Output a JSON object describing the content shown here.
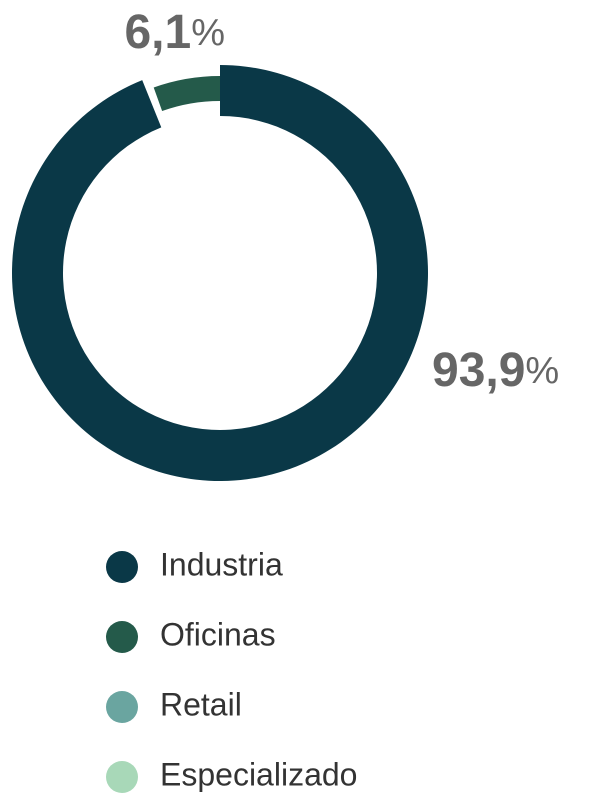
{
  "chart_data": {
    "type": "donut",
    "categories": [
      "Industria",
      "Oficinas",
      "Retail",
      "Especializado"
    ],
    "values": [
      93.9,
      6.1,
      0,
      0
    ],
    "value_labels": [
      "93,9%",
      "6,1%",
      null,
      null
    ],
    "colors": [
      "#0a3847",
      "#245a4a",
      "#6aa5a0",
      "#a8d8b8"
    ],
    "legend": "bottom"
  }
}
